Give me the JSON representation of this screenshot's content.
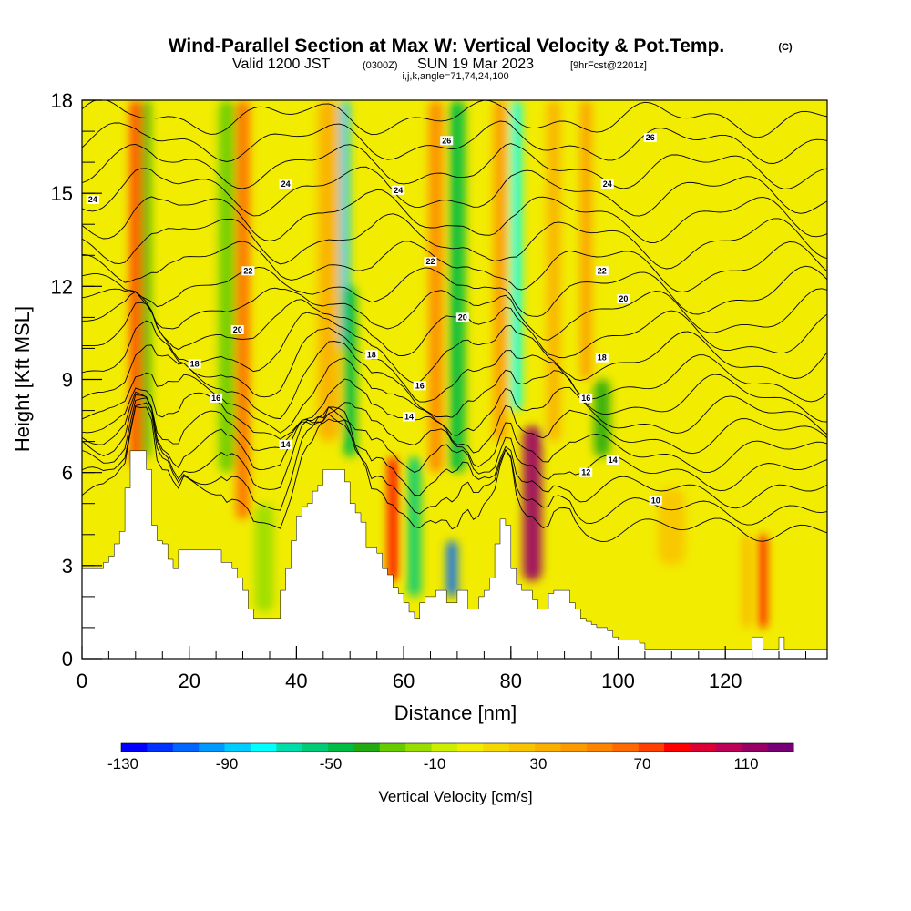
{
  "title": {
    "main": "Wind-Parallel Section at Max W: Vertical Velocity & Pot.Temp.",
    "copyright": "(C)",
    "valid_prefix": "Valid 1200 JST",
    "valid_z": "(0300Z)",
    "valid_date": "SUN 19 Mar 2023",
    "forecast": "[9hrFcst@2201z]",
    "indices": "i,j,k,angle=71,74,24,100"
  },
  "chart_data": {
    "type": "heatmap",
    "xlabel": "Distance [nm]",
    "ylabel": "Height [Kft MSL]",
    "xlim": [
      0,
      139
    ],
    "ylim": [
      0,
      18
    ],
    "x_ticks": [
      0,
      20,
      40,
      60,
      80,
      100,
      120
    ],
    "y_ticks": [
      0,
      3,
      6,
      9,
      12,
      15,
      18
    ],
    "background_color": "#f2ec00",
    "bands": [
      {
        "x": 10,
        "w": 2.2,
        "y0": 6.2,
        "y1": 18,
        "v": 70
      },
      {
        "x": 12,
        "w": 1.5,
        "y0": 6.5,
        "y1": 18,
        "v": -40
      },
      {
        "x": 30,
        "w": 2.5,
        "y0": 4.5,
        "y1": 18,
        "v": 60
      },
      {
        "x": 27,
        "w": 3,
        "y0": 6,
        "y1": 18,
        "v": -30
      },
      {
        "x": 34,
        "w": 3.5,
        "y0": 1.5,
        "y1": 5,
        "v": -20
      },
      {
        "x": 46,
        "w": 4,
        "y0": 7,
        "y1": 18,
        "v": 30
      },
      {
        "x": 49,
        "w": 1.8,
        "y0": 10,
        "y1": 18,
        "v": -90
      },
      {
        "x": 50,
        "w": 2.5,
        "y0": 6.5,
        "y1": 12,
        "v": -50
      },
      {
        "x": 58,
        "w": 2,
        "y0": 2.5,
        "y1": 6.5,
        "v": 80
      },
      {
        "x": 62,
        "w": 2.5,
        "y0": 2,
        "y1": 6.5,
        "v": -60
      },
      {
        "x": 66,
        "w": 2.5,
        "y0": 6,
        "y1": 18,
        "v": 50
      },
      {
        "x": 69,
        "w": 2,
        "y0": 2,
        "y1": 3.8,
        "v": -110
      },
      {
        "x": 70,
        "w": 3,
        "y0": 6,
        "y1": 18,
        "v": -50
      },
      {
        "x": 78,
        "w": 2.5,
        "y0": 7,
        "y1": 18,
        "v": 40
      },
      {
        "x": 81,
        "w": 2,
        "y0": 8,
        "y1": 18,
        "v": -80
      },
      {
        "x": 84,
        "w": 3.5,
        "y0": 2.5,
        "y1": 7.5,
        "v": 110
      },
      {
        "x": 88,
        "w": 2.5,
        "y0": 7,
        "y1": 18,
        "v": 30
      },
      {
        "x": 97,
        "w": 3,
        "y0": 6.5,
        "y1": 9,
        "v": -40
      },
      {
        "x": 94,
        "w": 2,
        "y0": 9,
        "y1": 18,
        "v": 40
      },
      {
        "x": 127,
        "w": 1.5,
        "y0": 1,
        "y1": 4,
        "v": 80
      },
      {
        "x": 124,
        "w": 1.5,
        "y0": 1,
        "y1": 4,
        "v": 30
      },
      {
        "x": 110,
        "w": 5,
        "y0": 3,
        "y1": 5.5,
        "v": 15
      },
      {
        "x": 120,
        "w": 6,
        "y0": 8,
        "y1": 18,
        "v": -5
      }
    ],
    "terrain": [
      [
        0,
        2.9
      ],
      [
        3,
        2.9
      ],
      [
        4,
        3.1
      ],
      [
        5,
        3.3
      ],
      [
        6,
        3.7
      ],
      [
        7,
        4.1
      ],
      [
        8,
        5.5
      ],
      [
        9,
        6.7
      ],
      [
        11,
        6.7
      ],
      [
        12,
        6.1
      ],
      [
        13,
        4.3
      ],
      [
        14,
        3.8
      ],
      [
        15,
        3.7
      ],
      [
        16,
        3.2
      ],
      [
        17,
        2.9
      ],
      [
        18,
        3.5
      ],
      [
        25,
        3.5
      ],
      [
        26,
        3.1
      ],
      [
        27,
        3.1
      ],
      [
        28,
        2.9
      ],
      [
        29,
        2.6
      ],
      [
        30,
        2.2
      ],
      [
        31,
        1.6
      ],
      [
        32,
        1.3
      ],
      [
        36,
        1.3
      ],
      [
        37,
        2.2
      ],
      [
        38,
        2.9
      ],
      [
        39,
        3.8
      ],
      [
        40,
        4.6
      ],
      [
        41,
        4.9
      ],
      [
        42,
        5.0
      ],
      [
        43,
        5.4
      ],
      [
        44,
        5.6
      ],
      [
        45,
        6.1
      ],
      [
        48,
        6.1
      ],
      [
        49,
        5.7
      ],
      [
        50,
        5.0
      ],
      [
        51,
        4.7
      ],
      [
        52,
        4.4
      ],
      [
        53,
        3.6
      ],
      [
        54,
        3.6
      ],
      [
        55,
        3.4
      ],
      [
        56,
        2.9
      ],
      [
        57,
        2.7
      ],
      [
        58,
        2.3
      ],
      [
        59,
        2.1
      ],
      [
        60,
        1.8
      ],
      [
        61,
        1.5
      ],
      [
        62,
        1.3
      ],
      [
        63,
        1.8
      ],
      [
        64,
        2.0
      ],
      [
        65,
        2.0
      ],
      [
        66,
        2.2
      ],
      [
        67,
        2.2
      ],
      [
        68,
        1.8
      ],
      [
        69,
        1.8
      ],
      [
        70,
        2.2
      ],
      [
        71,
        2.2
      ],
      [
        72,
        1.6
      ],
      [
        73,
        1.6
      ],
      [
        74,
        2.0
      ],
      [
        75,
        2.2
      ],
      [
        76,
        2.6
      ],
      [
        77,
        3.7
      ],
      [
        78,
        4.5
      ],
      [
        79,
        4.3
      ],
      [
        80,
        2.9
      ],
      [
        81,
        2.4
      ],
      [
        82,
        2.2
      ],
      [
        83,
        2.2
      ],
      [
        84,
        1.9
      ],
      [
        85,
        1.6
      ],
      [
        86,
        1.6
      ],
      [
        87,
        2.1
      ],
      [
        88,
        2.2
      ],
      [
        90,
        2.2
      ],
      [
        91,
        1.8
      ],
      [
        92,
        1.6
      ],
      [
        93,
        1.3
      ],
      [
        94,
        1.2
      ],
      [
        95,
        1.1
      ],
      [
        96,
        1.0
      ],
      [
        97,
        1.0
      ],
      [
        98,
        0.9
      ],
      [
        99,
        0.7
      ],
      [
        100,
        0.6
      ],
      [
        103,
        0.6
      ],
      [
        104,
        0.5
      ],
      [
        105,
        0.3
      ],
      [
        124,
        0.3
      ],
      [
        125,
        0.7
      ],
      [
        126,
        0.7
      ],
      [
        127,
        0.3
      ],
      [
        129,
        0.3
      ],
      [
        130,
        0.7
      ],
      [
        131,
        0.3
      ],
      [
        139,
        0.3
      ]
    ],
    "isentropes": [
      {
        "y": 4.2,
        "a": 0.2
      },
      {
        "y": 4.8,
        "a": 0.25
      },
      {
        "y": 5.4,
        "a": 0.3
      },
      {
        "y": 6.0,
        "a": 0.35
      },
      {
        "y": 6.6,
        "a": 0.4
      },
      {
        "y": 7.2,
        "a": 0.45
      },
      {
        "y": 7.8,
        "a": 0.5
      },
      {
        "y": 8.4,
        "a": 0.55
      },
      {
        "y": 9.0,
        "a": 0.55
      },
      {
        "y": 9.7,
        "a": 0.6
      },
      {
        "y": 10.4,
        "a": 0.6
      },
      {
        "y": 11.1,
        "a": 0.6
      },
      {
        "y": 11.8,
        "a": 0.6
      },
      {
        "y": 12.6,
        "a": 0.6
      },
      {
        "y": 13.4,
        "a": 0.6
      },
      {
        "y": 14.2,
        "a": 0.55
      },
      {
        "y": 15.0,
        "a": 0.5
      },
      {
        "y": 15.8,
        "a": 0.45
      },
      {
        "y": 16.6,
        "a": 0.4
      },
      {
        "y": 17.4,
        "a": 0.35
      }
    ],
    "contour_labels": [
      {
        "text": "24",
        "x": 2,
        "y": 14.8
      },
      {
        "text": "24",
        "x": 38,
        "y": 15.3
      },
      {
        "text": "24",
        "x": 59,
        "y": 15.1
      },
      {
        "text": "24",
        "x": 98,
        "y": 15.3
      },
      {
        "text": "26",
        "x": 68,
        "y": 16.7
      },
      {
        "text": "26",
        "x": 106,
        "y": 16.8
      },
      {
        "text": "22",
        "x": 31,
        "y": 12.5
      },
      {
        "text": "22",
        "x": 65,
        "y": 12.8
      },
      {
        "text": "22",
        "x": 97,
        "y": 12.5
      },
      {
        "text": "20",
        "x": 29,
        "y": 10.6
      },
      {
        "text": "20",
        "x": 71,
        "y": 11.0
      },
      {
        "text": "20",
        "x": 101,
        "y": 11.6
      },
      {
        "text": "18",
        "x": 21,
        "y": 9.5
      },
      {
        "text": "18",
        "x": 54,
        "y": 9.8
      },
      {
        "text": "18",
        "x": 97,
        "y": 9.7
      },
      {
        "text": "16",
        "x": 25,
        "y": 8.4
      },
      {
        "text": "16",
        "x": 63,
        "y": 8.8
      },
      {
        "text": "16",
        "x": 94,
        "y": 8.4
      },
      {
        "text": "14",
        "x": 38,
        "y": 6.9
      },
      {
        "text": "14",
        "x": 61,
        "y": 7.8
      },
      {
        "text": "14",
        "x": 99,
        "y": 6.4
      },
      {
        "text": "12",
        "x": 94,
        "y": 6.0
      },
      {
        "text": "10",
        "x": 107,
        "y": 5.1
      }
    ],
    "colorbar": {
      "title": "Vertical Velocity [cm/s]",
      "labels": [
        "-130",
        "-90",
        "-50",
        "-10",
        "30",
        "70",
        "110"
      ],
      "colors": [
        "#0000ff",
        "#0033ff",
        "#0066ff",
        "#0099ff",
        "#00ccff",
        "#00ffff",
        "#00ddaa",
        "#00cc77",
        "#00bb44",
        "#22aa11",
        "#66cc00",
        "#99dd00",
        "#ccee00",
        "#f2ec00",
        "#f5d800",
        "#f8c400",
        "#faaf00",
        "#fc9a00",
        "#fe8400",
        "#ff6a00",
        "#ff4000",
        "#ff0000",
        "#dd0033",
        "#bb0055",
        "#990066",
        "#770077"
      ]
    }
  }
}
